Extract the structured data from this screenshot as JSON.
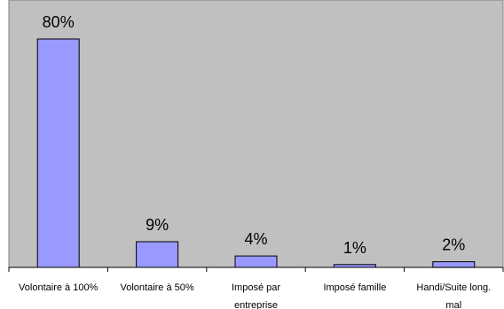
{
  "chart_data": {
    "type": "bar",
    "categories": [
      [
        "Volontaire à 100%"
      ],
      [
        "Volontaire à 50%"
      ],
      [
        "Imposé par",
        "entreprise"
      ],
      [
        "Imposé famille"
      ],
      [
        "Handi/Suite long.",
        "mal"
      ]
    ],
    "values": [
      80,
      9,
      4,
      1,
      2
    ],
    "data_labels": [
      "80%",
      "9%",
      "4%",
      "1%",
      "2%"
    ],
    "ylim": [
      0,
      85
    ],
    "grid": false,
    "legend": "none",
    "colors": {
      "plot_background": "#c0c0c0",
      "bar_fill": "#9999ff",
      "bar_stroke": "#000000"
    }
  }
}
